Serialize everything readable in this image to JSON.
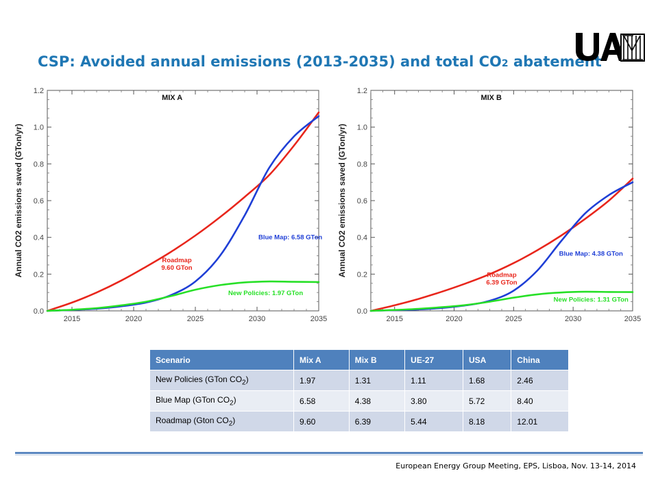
{
  "slide": {
    "title_main": "CSP: Avoided annual emissions (2013-2035) and total CO",
    "title_sub": "2",
    "title_end": " abatement",
    "footer": "European Energy Group Meeting, EPS, Lisboa, Nov. 13-14, 2014"
  },
  "colors": {
    "roadmap": "#e8261c",
    "blue_map": "#1f3fd6",
    "new_policies": "#27e027",
    "title": "#1f77b4",
    "table_header": "#4f81bd"
  },
  "chart_data": [
    {
      "type": "line",
      "title": "MIX A",
      "xlabel": "",
      "ylabel": "Annual CO2 emissions saved (GTon/yr)",
      "xlim": [
        2013,
        2035
      ],
      "ylim": [
        0,
        1.2
      ],
      "xticks": [
        2015,
        2020,
        2025,
        2030,
        2035
      ],
      "yticks": [
        "0.0",
        "0.2",
        "0.4",
        "0.6",
        "0.8",
        "1.0",
        "1.2"
      ],
      "grid": false,
      "series": [
        {
          "key": "roadmap",
          "x": [
            2013,
            2015,
            2017,
            2019,
            2021,
            2023,
            2025,
            2027,
            2029,
            2031,
            2033,
            2035
          ],
          "values": [
            0,
            0.045,
            0.1,
            0.165,
            0.24,
            0.32,
            0.41,
            0.51,
            0.62,
            0.74,
            0.9,
            1.08
          ]
        },
        {
          "key": "blue_map",
          "x": [
            2013,
            2015,
            2017,
            2019,
            2021,
            2023,
            2025,
            2027,
            2029,
            2031,
            2033,
            2035
          ],
          "values": [
            0,
            0.005,
            0.012,
            0.025,
            0.045,
            0.085,
            0.16,
            0.3,
            0.52,
            0.78,
            0.95,
            1.06
          ]
        },
        {
          "key": "new_policies",
          "x": [
            2013,
            2015,
            2017,
            2019,
            2021,
            2023,
            2025,
            2027,
            2029,
            2031,
            2033,
            2035
          ],
          "values": [
            0,
            0.006,
            0.015,
            0.03,
            0.05,
            0.08,
            0.115,
            0.14,
            0.155,
            0.16,
            0.158,
            0.157
          ]
        }
      ],
      "annotations": [
        {
          "key": "blue_map",
          "lines": [
            "Blue Map: 6.58 GTon"
          ],
          "x": 2032.7,
          "y": 0.39
        },
        {
          "key": "roadmap",
          "lines": [
            "Roadmap",
            "9.60 GTon"
          ],
          "x": 2023.5,
          "y": 0.265
        },
        {
          "key": "new_policies",
          "lines": [
            "New Policies: 1.97 GTon"
          ],
          "x": 2030.7,
          "y": 0.085
        }
      ]
    },
    {
      "type": "line",
      "title": "MIX B",
      "xlabel": "",
      "ylabel": "Annual CO2 emissions saved (GTon/yr)",
      "xlim": [
        2013,
        2035
      ],
      "ylim": [
        0,
        1.2
      ],
      "xticks": [
        2015,
        2020,
        2025,
        2030,
        2035
      ],
      "yticks": [
        "0.0",
        "0.2",
        "0.4",
        "0.6",
        "0.8",
        "1.0",
        "1.2"
      ],
      "grid": false,
      "series": [
        {
          "key": "roadmap",
          "x": [
            2013,
            2015,
            2017,
            2019,
            2021,
            2023,
            2025,
            2027,
            2029,
            2031,
            2033,
            2035
          ],
          "values": [
            0,
            0.03,
            0.065,
            0.105,
            0.15,
            0.2,
            0.26,
            0.33,
            0.41,
            0.5,
            0.6,
            0.72
          ]
        },
        {
          "key": "blue_map",
          "x": [
            2013,
            2015,
            2017,
            2019,
            2021,
            2023,
            2025,
            2027,
            2029,
            2031,
            2033,
            2035
          ],
          "values": [
            0,
            0.004,
            0.008,
            0.016,
            0.03,
            0.055,
            0.11,
            0.22,
            0.38,
            0.53,
            0.63,
            0.7
          ]
        },
        {
          "key": "new_policies",
          "x": [
            2013,
            2015,
            2017,
            2019,
            2021,
            2023,
            2025,
            2027,
            2029,
            2031,
            2033,
            2035
          ],
          "values": [
            0,
            0.005,
            0.011,
            0.02,
            0.032,
            0.05,
            0.072,
            0.09,
            0.1,
            0.104,
            0.103,
            0.102
          ]
        }
      ],
      "annotations": [
        {
          "key": "blue_map",
          "lines": [
            "Blue Map: 4.38 GTon"
          ],
          "x": 2031.5,
          "y": 0.3
        },
        {
          "key": "roadmap",
          "lines": [
            "Roadmap",
            "6.39 GTon"
          ],
          "x": 2024,
          "y": 0.185
        },
        {
          "key": "new_policies",
          "lines": [
            "New Policies: 1.31 GTon"
          ],
          "x": 2031.5,
          "y": 0.05
        }
      ]
    }
  ],
  "table": {
    "headers": [
      "Scenario",
      "Mix A",
      "Mix B",
      "UE-27",
      "USA",
      "China"
    ],
    "rows": [
      {
        "label": "New Policies (GTon CO",
        "sub": "2",
        "end": ")",
        "values": [
          "1.97",
          "1.31",
          "1.11",
          "1.68",
          "2.46"
        ]
      },
      {
        "label": "Blue Map (GTon CO",
        "sub": "2",
        "end": ")",
        "values": [
          "6.58",
          "4.38",
          "3.80",
          "5.72",
          "8.40"
        ]
      },
      {
        "label": "Roadmap (Gton CO",
        "sub": "2",
        "end": ")",
        "values": [
          "9.60",
          "6.39",
          "5.44",
          "8.18",
          "12.01"
        ]
      }
    ]
  }
}
